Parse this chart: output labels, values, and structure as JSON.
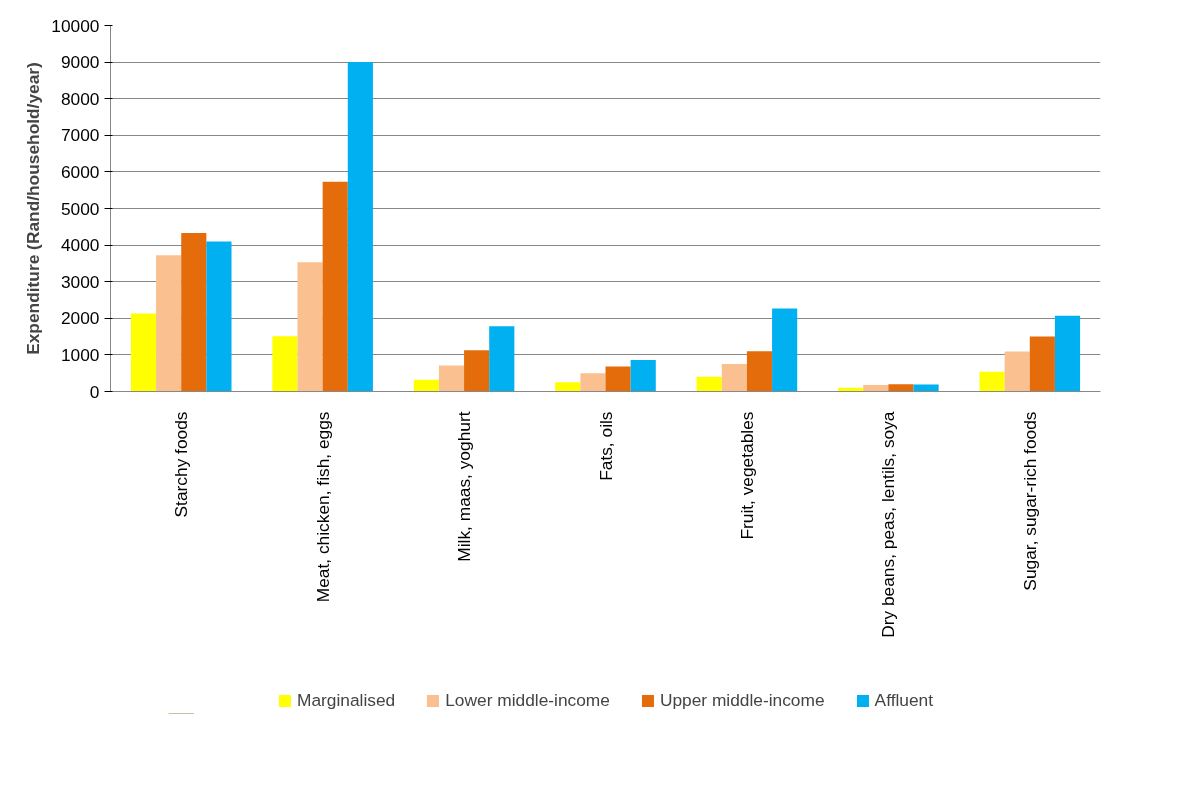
{
  "chart_data": {
    "type": "bar",
    "ylabel": "Expenditure (Rand/household/year)",
    "categories": [
      "Starchy foods",
      "Meat, chicken, fish, eggs",
      "Milk, maas, yoghurt",
      "Fats, oils",
      "Fruit, vegetables",
      "Dry beans, peas, lentils, soya",
      "Sugar, sugar-rich foods"
    ],
    "series": [
      {
        "name": "Marginalised",
        "color": "#ffff00",
        "values": [
          2130,
          1510,
          320,
          250,
          400,
          100,
          540
        ]
      },
      {
        "name": "Lower middle-income",
        "color": "#fac090",
        "values": [
          3720,
          3530,
          710,
          500,
          750,
          180,
          1090
        ]
      },
      {
        "name": "Upper middle-income",
        "color": "#e46c0a",
        "values": [
          4330,
          5730,
          1130,
          680,
          1100,
          200,
          1500
        ]
      },
      {
        "name": "Affluent",
        "color": "#00b0f0",
        "values": [
          4100,
          9000,
          1780,
          860,
          2270,
          190,
          2070
        ]
      }
    ],
    "ylim": [
      0,
      10000
    ],
    "yticks": [
      0,
      1000,
      2000,
      3000,
      4000,
      5000,
      6000,
      7000,
      8000,
      9000,
      10000
    ],
    "grid": "y",
    "legend": "bottom"
  }
}
